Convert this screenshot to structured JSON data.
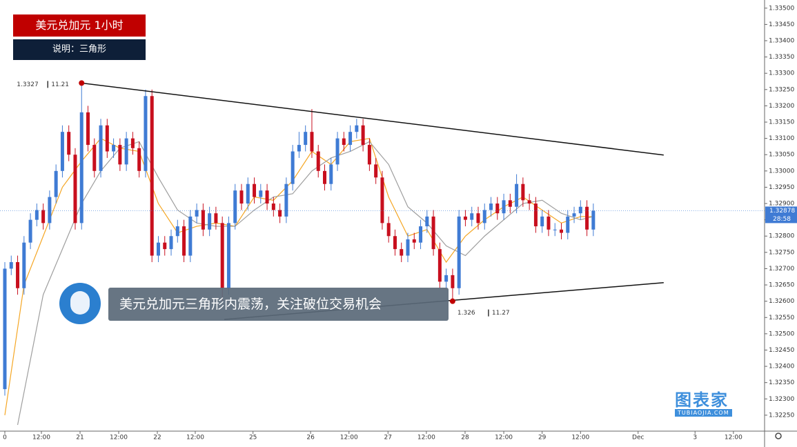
{
  "header": {
    "title": "美元兑加元 1小时",
    "note": "说明：三角形"
  },
  "banner": "美元兑加元三角形内震荡，关注破位交易机会",
  "watermark": {
    "name": "图表家",
    "url": "TUBIAOJIA.COM"
  },
  "chart_data": {
    "type": "candlestick",
    "up_color": "#3f7bd4",
    "down_color": "#c80f1e",
    "open": [
      1.3233,
      1.327,
      1.3272,
      1.3264,
      1.3278,
      1.3285,
      1.3288,
      1.3284,
      1.3292,
      1.33,
      1.3312,
      1.3305,
      1.3284,
      1.3318,
      1.3308,
      1.33,
      1.3314,
      1.3306,
      1.3308,
      1.3302,
      1.331,
      1.3307,
      1.33,
      1.3323,
      1.3274,
      1.3278,
      1.3276,
      1.328,
      1.3283,
      1.3274,
      1.3286,
      1.3288,
      1.3282,
      1.3287,
      1.3284,
      1.3264,
      1.3284,
      1.3294,
      1.329,
      1.3296,
      1.3292,
      1.3294,
      1.329,
      1.3288,
      1.3286,
      1.3296,
      1.3306,
      1.3308,
      1.3312,
      1.3306,
      1.33,
      1.3296,
      1.3302,
      1.331,
      1.3308,
      1.3312,
      1.3314,
      1.3308,
      1.3302,
      1.3298,
      1.3284,
      1.328,
      1.3276,
      1.3274,
      1.3279,
      1.3278,
      1.3283,
      1.3286,
      1.3276,
      1.3266,
      1.3268,
      1.3264,
      1.3286,
      1.3285,
      1.3287,
      1.3284,
      1.3288,
      1.329,
      1.3287,
      1.3291,
      1.3289,
      1.3296,
      1.3291,
      1.329,
      1.3283,
      1.3286,
      1.3282,
      1.3282,
      1.3281,
      1.3286,
      1.3287,
      1.3289,
      1.3282
    ],
    "close": [
      1.327,
      1.3272,
      1.3264,
      1.3278,
      1.3285,
      1.3288,
      1.3284,
      1.3292,
      1.33,
      1.3312,
      1.3305,
      1.3284,
      1.3318,
      1.3308,
      1.33,
      1.3314,
      1.3306,
      1.3308,
      1.3302,
      1.331,
      1.3307,
      1.33,
      1.3323,
      1.3274,
      1.3278,
      1.3276,
      1.328,
      1.3283,
      1.3274,
      1.3286,
      1.3288,
      1.3282,
      1.3287,
      1.3284,
      1.3264,
      1.3284,
      1.3294,
      1.329,
      1.3296,
      1.3292,
      1.3294,
      1.329,
      1.3288,
      1.3286,
      1.3296,
      1.3306,
      1.3308,
      1.3312,
      1.3306,
      1.33,
      1.3296,
      1.3302,
      1.331,
      1.3308,
      1.3312,
      1.3314,
      1.3308,
      1.3302,
      1.3298,
      1.3284,
      1.328,
      1.3276,
      1.3274,
      1.3279,
      1.3278,
      1.3283,
      1.3286,
      1.3276,
      1.3266,
      1.3268,
      1.3264,
      1.3286,
      1.3285,
      1.3287,
      1.3284,
      1.3288,
      1.329,
      1.3287,
      1.3291,
      1.3289,
      1.3296,
      1.3291,
      1.329,
      1.3283,
      1.3286,
      1.3282,
      1.3282,
      1.3281,
      1.3286,
      1.3287,
      1.3289,
      1.3282,
      1.32878
    ],
    "high": [
      1.3272,
      1.3274,
      1.3274,
      1.328,
      1.3287,
      1.329,
      1.329,
      1.3294,
      1.3302,
      1.3314,
      1.3314,
      1.3307,
      1.3327,
      1.332,
      1.331,
      1.3316,
      1.3316,
      1.331,
      1.331,
      1.3312,
      1.3312,
      1.3309,
      1.3325,
      1.3325,
      1.328,
      1.328,
      1.3282,
      1.3285,
      1.3285,
      1.3288,
      1.329,
      1.329,
      1.3289,
      1.3289,
      1.3286,
      1.3286,
      1.3296,
      1.3296,
      1.3298,
      1.3298,
      1.3296,
      1.3296,
      1.3292,
      1.329,
      1.3298,
      1.3308,
      1.3312,
      1.3314,
      1.3319,
      1.3308,
      1.3302,
      1.3304,
      1.3312,
      1.3312,
      1.3314,
      1.3316,
      1.3316,
      1.331,
      1.3304,
      1.33,
      1.3286,
      1.3282,
      1.3278,
      1.3281,
      1.3281,
      1.3285,
      1.3288,
      1.3288,
      1.3278,
      1.327,
      1.327,
      1.3288,
      1.3288,
      1.3289,
      1.3289,
      1.329,
      1.3292,
      1.3292,
      1.3293,
      1.3293,
      1.3299,
      1.3298,
      1.3293,
      1.3292,
      1.3288,
      1.3288,
      1.3284,
      1.3284,
      1.3288,
      1.3289,
      1.3291,
      1.3291,
      1.329
    ],
    "low": [
      1.3231,
      1.3268,
      1.3262,
      1.3262,
      1.3276,
      1.3283,
      1.3282,
      1.3282,
      1.329,
      1.3298,
      1.3303,
      1.3282,
      1.3282,
      1.3306,
      1.3298,
      1.3298,
      1.3304,
      1.3304,
      1.33,
      1.33,
      1.3305,
      1.3298,
      1.3298,
      1.3272,
      1.3272,
      1.3274,
      1.3274,
      1.3278,
      1.3272,
      1.3272,
      1.3284,
      1.328,
      1.328,
      1.3282,
      1.326,
      1.3262,
      1.3282,
      1.3288,
      1.3288,
      1.329,
      1.329,
      1.3288,
      1.3286,
      1.3284,
      1.3284,
      1.3294,
      1.3304,
      1.3306,
      1.3304,
      1.3298,
      1.3294,
      1.3294,
      1.33,
      1.3306,
      1.3306,
      1.331,
      1.3306,
      1.33,
      1.3296,
      1.3282,
      1.3278,
      1.3274,
      1.3272,
      1.3272,
      1.3276,
      1.3276,
      1.3281,
      1.3274,
      1.3264,
      1.3264,
      1.326,
      1.3262,
      1.3283,
      1.3283,
      1.3282,
      1.3282,
      1.3286,
      1.3285,
      1.3285,
      1.3287,
      1.3287,
      1.3289,
      1.3288,
      1.3281,
      1.3281,
      1.328,
      1.328,
      1.3279,
      1.3279,
      1.3284,
      1.3285,
      1.328,
      1.328
    ],
    "lines": [
      {
        "color": "#f5a623",
        "x": [
          0,
          3,
          6,
          9,
          12,
          15,
          18,
          21,
          24,
          27,
          30,
          33,
          36,
          39,
          42,
          45,
          48,
          51,
          54,
          57,
          60,
          63,
          66,
          69,
          72,
          75,
          78,
          81,
          84,
          87,
          90,
          92
        ],
        "values": [
          1.3225,
          1.3265,
          1.328,
          1.3295,
          1.3303,
          1.331,
          1.3307,
          1.3306,
          1.329,
          1.3281,
          1.3283,
          1.3284,
          1.3283,
          1.3292,
          1.3291,
          1.3297,
          1.3306,
          1.3302,
          1.3309,
          1.331,
          1.3292,
          1.328,
          1.3282,
          1.3272,
          1.328,
          1.3285,
          1.3289,
          1.3292,
          1.3288,
          1.3284,
          1.3286,
          1.3286
        ]
      },
      {
        "color": "#9e9e9e",
        "x": [
          2,
          6,
          9,
          12,
          15,
          18,
          21,
          24,
          27,
          30,
          33,
          36,
          39,
          42,
          45,
          48,
          51,
          54,
          57,
          60,
          63,
          66,
          69,
          72,
          75,
          78,
          81,
          84,
          87,
          90,
          92
        ],
        "values": [
          1.3222,
          1.3262,
          1.3276,
          1.329,
          1.33,
          1.3307,
          1.3309,
          1.3298,
          1.3288,
          1.3284,
          1.3283,
          1.3283,
          1.3288,
          1.3292,
          1.3293,
          1.33,
          1.3304,
          1.3306,
          1.3309,
          1.3302,
          1.3289,
          1.3284,
          1.3277,
          1.3274,
          1.328,
          1.3285,
          1.329,
          1.3291,
          1.3287,
          1.3285,
          1.3286
        ]
      }
    ],
    "trendlines": [
      {
        "x": [
          12,
          103
        ],
        "values": [
          1.3327,
          1.33049
        ]
      },
      {
        "x": [
          34.3,
          103
        ],
        "values": [
          1.32544,
          1.32657
        ]
      }
    ],
    "annotations": [
      {
        "x": 12,
        "value": 1.3327,
        "date": "11.21"
      },
      {
        "x": 70,
        "value": 1.326,
        "date": "11.27"
      }
    ],
    "last_price": {
      "value": 1.32878,
      "label": "1.32878"
    },
    "countdown": "28:58",
    "xlim": [
      -0.755,
      118.77
    ],
    "ylim": [
      1.32201,
      1.33525
    ],
    "xticks": [
      0,
      {
        "value": 5.72,
        "label": "12:00"
      },
      {
        "value": 11.76,
        "label": "21"
      },
      {
        "value": 17.8,
        "label": "12:00"
      },
      {
        "value": 23.84,
        "label": "22"
      },
      {
        "value": 29.77,
        "label": "12:00"
      },
      {
        "value": 38.8,
        "label": "25"
      },
      {
        "value": 47.8,
        "label": "26"
      },
      {
        "value": 53.8,
        "label": "12:00"
      },
      {
        "value": 59.9,
        "label": "27"
      },
      {
        "value": 65.9,
        "label": "12:00"
      },
      {
        "value": 71.95,
        "label": "28"
      },
      {
        "value": 78,
        "label": "12:00"
      },
      {
        "value": 84,
        "label": "29"
      },
      {
        "value": 90,
        "label": "12:00"
      },
      {
        "value": 99,
        "label": "Dec"
      },
      {
        "value": 107.9,
        "label": "3"
      },
      {
        "value": 113.9,
        "label": "12:00"
      }
    ],
    "yticks": [
      {
        "value": 1.3225,
        "label": "1.32250"
      },
      {
        "value": 1.323,
        "label": "1.32300"
      },
      {
        "value": 1.3235,
        "label": "1.32350"
      },
      {
        "value": 1.324,
        "label": "1.32400"
      },
      {
        "value": 1.3245,
        "label": "1.32450"
      },
      {
        "value": 1.325,
        "label": "1.32500"
      },
      {
        "value": 1.3255,
        "label": "1.32550"
      },
      {
        "value": 1.326,
        "label": "1.32600"
      },
      {
        "value": 1.3265,
        "label": "1.32650"
      },
      {
        "value": 1.327,
        "label": "1.32700"
      },
      {
        "value": 1.3275,
        "label": "1.32750"
      },
      {
        "value": 1.328,
        "label": "1.32800"
      },
      {
        "value": 1.3285,
        "label": "1.32850"
      },
      {
        "value": 1.329,
        "label": "1.32900"
      },
      {
        "value": 1.3295,
        "label": "1.32950"
      },
      {
        "value": 1.33,
        "label": "1.33000"
      },
      {
        "value": 1.3305,
        "label": "1.33050"
      },
      {
        "value": 1.331,
        "label": "1.33100"
      },
      {
        "value": 1.3315,
        "label": "1.33150"
      },
      {
        "value": 1.332,
        "label": "1.33200"
      },
      {
        "value": 1.3325,
        "label": "1.33250"
      },
      {
        "value": 1.333,
        "label": "1.33300"
      },
      {
        "value": 1.3335,
        "label": "1.33350"
      },
      {
        "value": 1.334,
        "label": "1.33400"
      },
      {
        "value": 1.3345,
        "label": "1.33450"
      },
      {
        "value": 1.335,
        "label": "1.33500"
      }
    ],
    "grid": false
  }
}
